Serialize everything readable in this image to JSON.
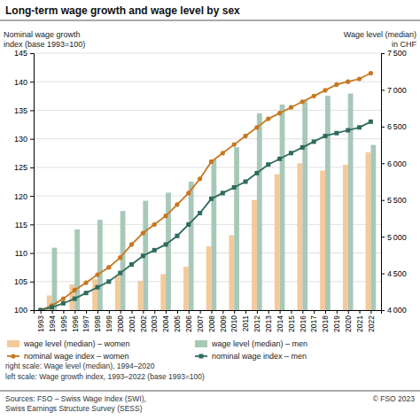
{
  "chart_data": {
    "type": "bar",
    "title": "Long-term wage growth and wage level by sex",
    "y_label": "Nominal wage growth\nindex (base 1993=100)",
    "y2_label": "Wage level (median)\nin CHF",
    "series": [
      {
        "name": "wage level (median) – women",
        "type": "bar",
        "axis": "y2",
        "color": "#f5c99a",
        "x": [
          1994,
          1996,
          1998,
          2000,
          2002,
          2004,
          2006,
          2008,
          2010,
          2012,
          2014,
          2016,
          2018,
          2020,
          2022
        ],
        "values": [
          4200,
          4350,
          4420,
          4470,
          4400,
          4490,
          4590,
          4870,
          5020,
          5500,
          5850,
          6000,
          5900,
          5980,
          6150
        ]
      },
      {
        "name": "nominal wage index – women",
        "type": "line",
        "marker": "circle",
        "color": "#c87820",
        "x": [
          1993,
          1994,
          1995,
          1996,
          1997,
          1998,
          1999,
          2000,
          2001,
          2002,
          2003,
          2004,
          2005,
          2006,
          2007,
          2008,
          2009,
          2010,
          2011,
          2012,
          2013,
          2014,
          2015,
          2016,
          2017,
          2018,
          2019,
          2020,
          2021,
          2022
        ],
        "values": [
          100,
          100.8,
          102.0,
          103.5,
          104.8,
          106.2,
          107.5,
          109.2,
          111.5,
          113.5,
          115.0,
          116.5,
          118.5,
          120.5,
          123.0,
          126.0,
          127.5,
          129.0,
          130.5,
          132.0,
          133.5,
          134.5,
          135.5,
          136.5,
          137.5,
          138.5,
          139.5,
          140.0,
          140.5,
          141.5
        ]
      },
      {
        "name": "wage level (median) – men",
        "type": "bar",
        "axis": "y2",
        "color": "#a8c8b8",
        "x": [
          1994,
          1996,
          1998,
          2000,
          2002,
          2004,
          2006,
          2008,
          2010,
          2012,
          2014,
          2016,
          2018,
          2020,
          2022
        ],
        "values": [
          4850,
          5100,
          5230,
          5350,
          5490,
          5600,
          5750,
          6050,
          6220,
          6680,
          6800,
          6860,
          6920,
          6950,
          6250
        ]
      },
      {
        "name": "nominal wage index – men",
        "type": "line",
        "marker": "square",
        "color": "#2e6b5e",
        "x": [
          1993,
          1994,
          1995,
          1996,
          1997,
          1998,
          1999,
          2000,
          2001,
          2002,
          2003,
          2004,
          2005,
          2006,
          2007,
          2008,
          2009,
          2010,
          2011,
          2012,
          2013,
          2014,
          2015,
          2016,
          2017,
          2018,
          2019,
          2020,
          2021,
          2022
        ],
        "values": [
          100,
          100.5,
          101.2,
          102.0,
          103.0,
          104.0,
          105.0,
          106.5,
          108.0,
          109.5,
          110.5,
          111.5,
          113.0,
          115.0,
          117.0,
          119.5,
          120.5,
          121.5,
          122.5,
          124.0,
          125.5,
          126.5,
          127.5,
          128.5,
          129.5,
          130.5,
          131.0,
          131.5,
          132.0,
          133.0
        ]
      }
    ],
    "xlim": [
      1992.4,
      2022.9
    ],
    "xticks": [
      1993,
      1994,
      1995,
      1996,
      1997,
      1998,
      1999,
      2000,
      2001,
      2002,
      2003,
      2004,
      2005,
      2006,
      2007,
      2008,
      2009,
      2010,
      2011,
      2012,
      2013,
      2014,
      2015,
      2016,
      2017,
      2018,
      2019,
      2020,
      2021,
      2022
    ],
    "ylim": [
      100,
      145
    ],
    "yticks": [
      100,
      105,
      110,
      115,
      120,
      125,
      130,
      135,
      140,
      145
    ],
    "y2lim": [
      4000,
      7500
    ],
    "y2ticks": [
      {
        "value": 4000,
        "label": "4 000"
      },
      {
        "value": 4500,
        "label": "4 500"
      },
      {
        "value": 5000,
        "label": "5 000"
      },
      {
        "value": 5500,
        "label": "5 500"
      },
      {
        "value": 6000,
        "label": "6 000"
      },
      {
        "value": 6500,
        "label": "6 500"
      },
      {
        "value": 7000,
        "label": "7 000"
      },
      {
        "value": 7500,
        "label": "7 500"
      }
    ],
    "grid": true,
    "legend": "bottom",
    "annotations": [
      "right scale: Wage level (median), 1994–2020",
      "left scale: Wage growth index, 1993–2022 (base 1993=100)"
    ],
    "source": "Sources: FSO – Swiss Wage Index (SWI),\nSwiss Earnings Structure Survey (SESS)",
    "copyright": "© FSO 2023"
  }
}
